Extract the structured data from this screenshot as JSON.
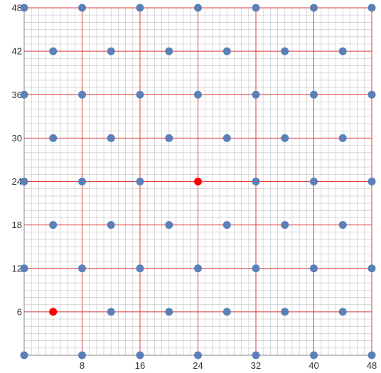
{
  "chart_data": {
    "type": "scatter",
    "title": "",
    "xlabel": "",
    "ylabel": "",
    "xlim": [
      0,
      48
    ],
    "ylim": [
      0,
      48
    ],
    "grid": {
      "minor_step": 1,
      "major_step": 8,
      "horizontal_major_step": 6
    },
    "x_ticks": [
      "8",
      "16",
      "24",
      "32",
      "40",
      "48"
    ],
    "y_ticks": [
      "6",
      "12",
      "18",
      "24",
      "30",
      "36",
      "42",
      "48"
    ],
    "series": [
      {
        "color": "#5b80b8",
        "points": [
          [
            0,
            0
          ],
          [
            8,
            0
          ],
          [
            16,
            0
          ],
          [
            24,
            0
          ],
          [
            32,
            0
          ],
          [
            40,
            0
          ],
          [
            48,
            0
          ],
          [
            4,
            6
          ],
          [
            12,
            6
          ],
          [
            20,
            6
          ],
          [
            28,
            6
          ],
          [
            36,
            6
          ],
          [
            44,
            6
          ],
          [
            0,
            12
          ],
          [
            8,
            12
          ],
          [
            16,
            12
          ],
          [
            24,
            12
          ],
          [
            32,
            12
          ],
          [
            40,
            12
          ],
          [
            48,
            12
          ],
          [
            4,
            18
          ],
          [
            12,
            18
          ],
          [
            20,
            18
          ],
          [
            28,
            18
          ],
          [
            36,
            18
          ],
          [
            44,
            18
          ],
          [
            0,
            24
          ],
          [
            8,
            24
          ],
          [
            16,
            24
          ],
          [
            32,
            24
          ],
          [
            40,
            24
          ],
          [
            48,
            24
          ],
          [
            4,
            30
          ],
          [
            12,
            30
          ],
          [
            20,
            30
          ],
          [
            28,
            30
          ],
          [
            36,
            30
          ],
          [
            44,
            30
          ],
          [
            0,
            36
          ],
          [
            8,
            36
          ],
          [
            16,
            36
          ],
          [
            24,
            36
          ],
          [
            32,
            36
          ],
          [
            40,
            36
          ],
          [
            48,
            36
          ],
          [
            4,
            42
          ],
          [
            12,
            42
          ],
          [
            20,
            42
          ],
          [
            28,
            42
          ],
          [
            36,
            42
          ],
          [
            44,
            42
          ],
          [
            0,
            48
          ],
          [
            8,
            48
          ],
          [
            16,
            48
          ],
          [
            24,
            48
          ],
          [
            32,
            48
          ],
          [
            40,
            48
          ],
          [
            48,
            48
          ]
        ]
      },
      {
        "color": "#ff0000",
        "points": [
          [
            4,
            6
          ],
          [
            24,
            24
          ]
        ]
      }
    ],
    "colors": {
      "minor_grid": "#c8c8c8",
      "major_grid": "#e03c3c",
      "axis": "#888888"
    }
  }
}
